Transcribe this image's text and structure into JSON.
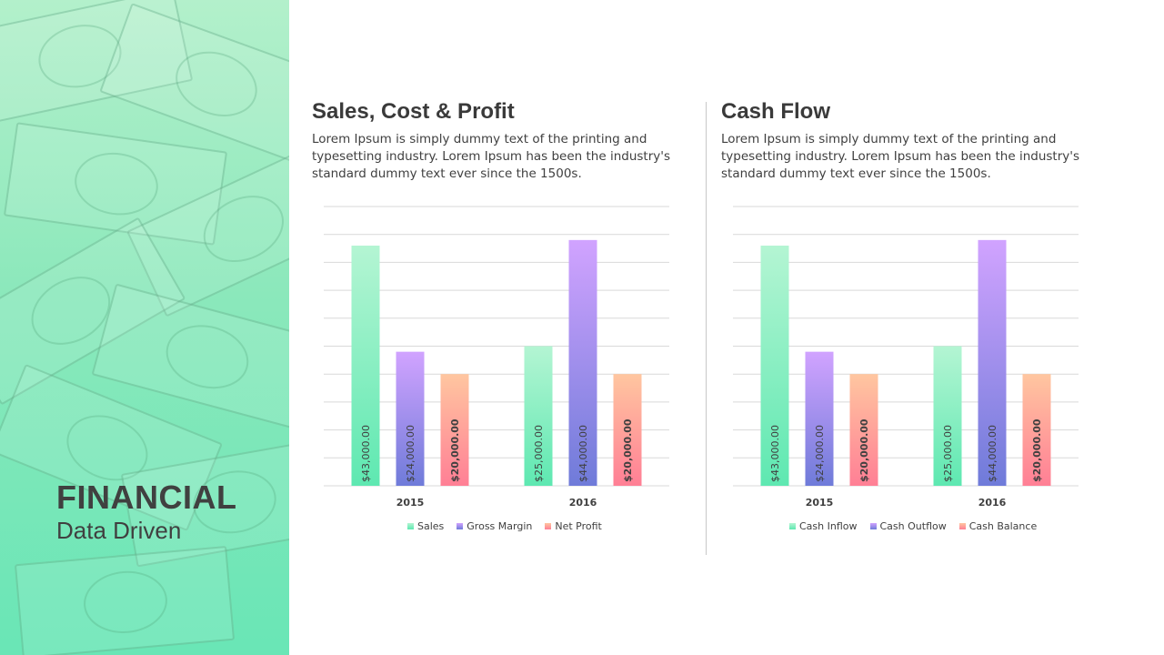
{
  "sidebar": {
    "title": "FINANCIAL",
    "subtitle": "Data Driven"
  },
  "panels": [
    {
      "heading": "Sales, Cost & Profit",
      "body": "Lorem Ipsum is simply dummy text of the printing and typesetting industry. Lorem Ipsum has been the industry's standard dummy text ever since the 1500s."
    },
    {
      "heading": "Cash Flow",
      "body": "Lorem Ipsum is simply dummy text of the printing and typesetting industry. Lorem Ipsum has been the industry's standard dummy text ever since the 1500s."
    }
  ],
  "colors": {
    "green": [
      "#b4f5d3",
      "#5ee8b1"
    ],
    "purple": [
      "#d1a3ff",
      "#6f7bd9"
    ],
    "red": [
      "#ffc6a0",
      "#ff7f95"
    ],
    "text": "#404040",
    "grid": "#d9d9d9"
  },
  "chart_data": [
    {
      "type": "bar",
      "categories": [
        "2015",
        "2016"
      ],
      "series": [
        {
          "name": "Sales",
          "values": [
            43000,
            25000
          ],
          "labels": [
            "$43,000.00",
            "$25,000.00"
          ],
          "color": "green"
        },
        {
          "name": "Gross Margin",
          "values": [
            24000,
            44000
          ],
          "labels": [
            "$24,000.00",
            "$44,000.00"
          ],
          "color": "purple"
        },
        {
          "name": "Net Profit",
          "values": [
            20000,
            20000
          ],
          "labels": [
            "$20,000.00",
            "$20,000.00"
          ],
          "color": "red"
        }
      ],
      "ylim": [
        0,
        50000
      ],
      "grid": true,
      "legend": "bottom"
    },
    {
      "type": "bar",
      "categories": [
        "2015",
        "2016"
      ],
      "series": [
        {
          "name": "Cash Inflow",
          "values": [
            43000,
            25000
          ],
          "labels": [
            "$43,000.00",
            "$25,000.00"
          ],
          "color": "green"
        },
        {
          "name": "Cash Outflow",
          "values": [
            24000,
            44000
          ],
          "labels": [
            "$24,000.00",
            "$44,000.00"
          ],
          "color": "purple"
        },
        {
          "name": "Cash Balance",
          "values": [
            20000,
            20000
          ],
          "labels": [
            "$20,000.00",
            "$20,000.00"
          ],
          "color": "red"
        }
      ],
      "ylim": [
        0,
        50000
      ],
      "grid": true,
      "legend": "bottom"
    }
  ]
}
